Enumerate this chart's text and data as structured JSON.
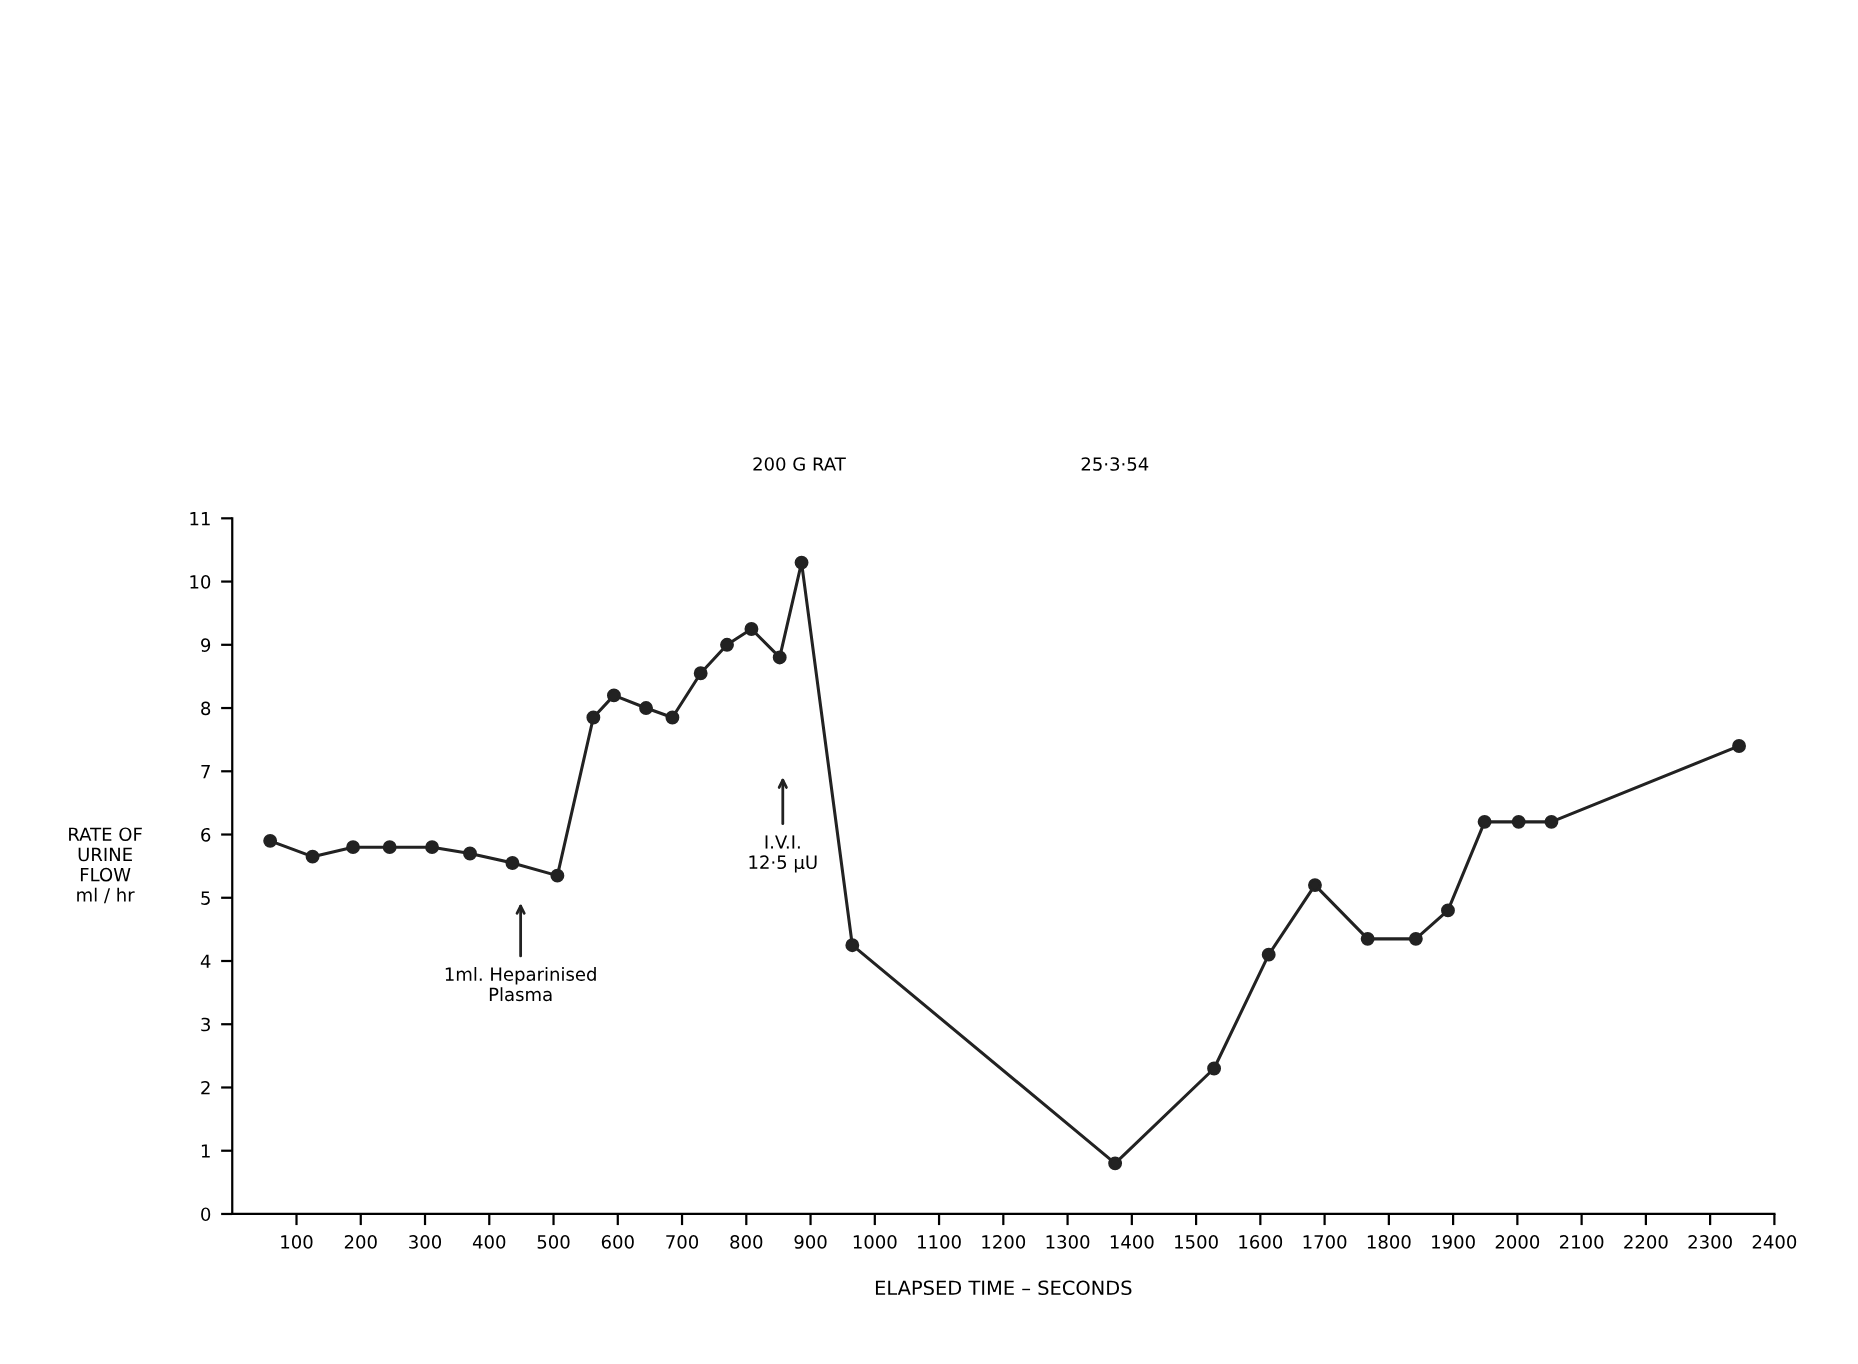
{
  "chart_data": {
    "type": "line",
    "title": "200 G RAT",
    "subtitle": "25·3·54",
    "xlabel": "ELAPSED TIME – SECONDS",
    "ylabel": "RATE OF\nURINE\nFLOW\nml / hr",
    "x": [
      59,
      125,
      188,
      245,
      311,
      370,
      436,
      506,
      562,
      594,
      644,
      685,
      729,
      770,
      808,
      852,
      886,
      965,
      1374,
      1528,
      1613,
      1685,
      1767,
      1842,
      1892,
      1949,
      2002,
      2053,
      2345
    ],
    "series": [
      {
        "color": "#222222",
        "values": [
          5.9,
          5.65,
          5.8,
          5.8,
          5.8,
          5.7,
          5.55,
          5.35,
          7.85,
          8.2,
          8.0,
          7.85,
          8.55,
          9.0,
          9.25,
          8.8,
          10.3,
          4.25,
          0.8,
          2.3,
          4.1,
          5.2,
          4.35,
          4.35,
          4.8,
          6.2,
          6.2,
          6.2,
          7.4
        ]
      }
    ],
    "xlim": [
      0,
      2400
    ],
    "ylim": [
      0,
      11
    ],
    "xticks": [
      100,
      200,
      300,
      400,
      500,
      600,
      700,
      800,
      900,
      1000,
      1100,
      1200,
      1300,
      1400,
      1500,
      1600,
      1700,
      1800,
      1900,
      2000,
      2100,
      2200,
      2300,
      2400
    ],
    "yticks": [
      0,
      1,
      2,
      3,
      4,
      5,
      6,
      7,
      8,
      9,
      10,
      11
    ],
    "annotations": [
      "1ml. Heparinised\nPlasma",
      "I.V.I.\n12·5 μU"
    ],
    "marker": "circle",
    "line_style": "solid",
    "grid": false,
    "legend": false
  }
}
